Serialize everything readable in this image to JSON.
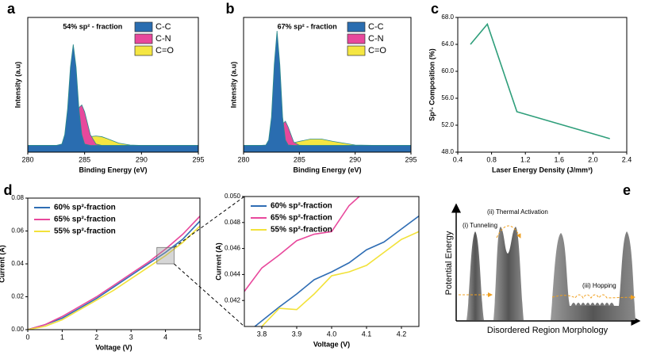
{
  "chart_data": [
    {
      "type": "area",
      "panel": "a",
      "annotation": "54% sp² - fraction",
      "x_label": "Binding Energy (eV)",
      "y_label": "Intensity (a.u)",
      "x": [
        280,
        282,
        282.5,
        283,
        283.25,
        283.5,
        283.75,
        284,
        284.25,
        284.5,
        284.75,
        285,
        285.5,
        286,
        286.5,
        287,
        288,
        289,
        290,
        292,
        295
      ],
      "series": [
        {
          "name": "C-C",
          "color": "#2a6db0",
          "values": [
            0.05,
            0.05,
            0.05,
            0.06,
            0.13,
            0.32,
            0.63,
            0.8,
            0.63,
            0.32,
            0.13,
            0.06,
            0.05,
            0.05,
            0.05,
            0.05,
            0.05,
            0.05,
            0.05,
            0.05,
            0.05
          ]
        },
        {
          "name": "C-N",
          "color": "#e8489c",
          "values": [
            0.05,
            0.05,
            0.05,
            0.05,
            0.055,
            0.067,
            0.1,
            0.16,
            0.25,
            0.33,
            0.35,
            0.3,
            0.13,
            0.06,
            0.05,
            0.05,
            0.05,
            0.05,
            0.05,
            0.05,
            0.05
          ]
        },
        {
          "name": "C=O",
          "color": "#f5e642",
          "values": [
            0.05,
            0.05,
            0.05,
            0.051,
            0.052,
            0.053,
            0.06,
            0.067,
            0.073,
            0.08,
            0.09,
            0.1,
            0.115,
            0.12,
            0.115,
            0.1,
            0.067,
            0.053,
            0.05,
            0.05,
            0.05
          ]
        }
      ],
      "xlim": [
        280,
        295
      ],
      "xticks": [
        280,
        285,
        290,
        295
      ],
      "ylim": [
        0,
        1
      ],
      "legend": "upper right"
    },
    {
      "type": "area",
      "panel": "b",
      "annotation": "67% sp² - fraction",
      "x_label": "Binding Energy (eV)",
      "y_label": "Intensity (a.u)",
      "x": [
        280,
        281.5,
        282,
        282.25,
        282.5,
        282.75,
        283,
        283.25,
        283.5,
        283.75,
        284,
        284.5,
        285,
        286,
        287,
        288,
        290,
        292,
        295
      ],
      "series": [
        {
          "name": "C-C",
          "color": "#2a6db0",
          "values": [
            0.05,
            0.05,
            0.053,
            0.09,
            0.26,
            0.65,
            0.9,
            0.65,
            0.26,
            0.09,
            0.053,
            0.05,
            0.05,
            0.05,
            0.05,
            0.05,
            0.05,
            0.05,
            0.05
          ]
        },
        {
          "name": "C-N",
          "color": "#e8489c",
          "values": [
            0.05,
            0.05,
            0.05,
            0.05,
            0.052,
            0.061,
            0.089,
            0.146,
            0.208,
            0.23,
            0.186,
            0.074,
            0.051,
            0.05,
            0.05,
            0.05,
            0.05,
            0.05,
            0.05
          ]
        },
        {
          "name": "C=O",
          "color": "#f5e642",
          "values": [
            0.05,
            0.05,
            0.05,
            0.051,
            0.051,
            0.052,
            0.053,
            0.054,
            0.056,
            0.058,
            0.062,
            0.07,
            0.08,
            0.097,
            0.097,
            0.08,
            0.053,
            0.05,
            0.05
          ]
        }
      ],
      "xlim": [
        280,
        295
      ],
      "xticks": [
        280,
        285,
        290,
        295
      ],
      "ylim": [
        0,
        1
      ],
      "legend": "upper right"
    },
    {
      "type": "line",
      "panel": "c",
      "x_label": "Laser Energy Density (J/mm³)",
      "y_label": "Sp²- Composition (%)",
      "x": [
        0.55,
        0.75,
        1.1,
        2.2
      ],
      "series": [
        {
          "color": "#2e9e7a",
          "values": [
            64,
            67,
            54,
            50
          ]
        }
      ],
      "xlim": [
        0.4,
        2.4
      ],
      "xticks": [
        0.4,
        0.8,
        1.2,
        1.6,
        {
          "value": 2.0,
          "label": "2.0"
        },
        2.4
      ],
      "ylim": [
        48,
        68
      ],
      "yticks": [
        {
          "value": 48,
          "label": "48.0"
        },
        {
          "value": 52,
          "label": "52.0"
        },
        {
          "value": 56,
          "label": "56.0"
        },
        {
          "value": 60,
          "label": "60.0"
        },
        {
          "value": 64,
          "label": "64.0"
        },
        {
          "value": 68,
          "label": "68.0"
        }
      ]
    },
    {
      "type": "line",
      "panel": "d",
      "x_label": "Voltage (V)",
      "y_label": "Current (A)",
      "x": [
        0,
        0.5,
        1,
        1.5,
        2,
        2.5,
        3,
        3.5,
        4,
        4.5,
        5
      ],
      "series": [
        {
          "name": "60% sp²-fraction",
          "color": "#2f6db4",
          "values": [
            0,
            0.003,
            0.007,
            0.013,
            0.019,
            0.026,
            0.033,
            0.04,
            0.047,
            0.055,
            0.066
          ]
        },
        {
          "name": "65% sp²-fraction",
          "color": "#e8489c",
          "values": [
            0,
            0.003,
            0.008,
            0.014,
            0.02,
            0.027,
            0.034,
            0.041,
            0.049,
            0.058,
            0.069
          ]
        },
        {
          "name": "55% sp²-fraction",
          "color": "#f2e23a",
          "values": [
            0,
            0.002,
            0.006,
            0.012,
            0.018,
            0.024,
            0.031,
            0.038,
            0.045,
            0.053,
            0.063
          ]
        }
      ],
      "xlim": [
        0,
        5
      ],
      "xticks": [
        0,
        1,
        2,
        3,
        4,
        5
      ],
      "ylim": [
        0,
        0.08
      ],
      "yticks": [
        {
          "value": 0,
          "label": "0.00"
        },
        {
          "value": 0.02,
          "label": "0.02"
        },
        {
          "value": 0.04,
          "label": "0.04"
        },
        {
          "value": 0.06,
          "label": "0.06"
        },
        {
          "value": 0.08,
          "label": "0.08"
        }
      ],
      "legend": "upper left"
    },
    {
      "type": "line",
      "x_label": "Voltage (V)",
      "y_label": "Current (A)",
      "series": [
        {
          "name": "60% sp²-fraction",
          "color": "#2f6db4",
          "x": [
            3.78,
            3.85,
            3.9,
            3.95,
            4.0,
            4.05,
            4.1,
            4.15,
            4.2,
            4.25
          ],
          "values": [
            0.04,
            0.0415,
            0.0425,
            0.0436,
            0.0442,
            0.0449,
            0.0459,
            0.0465,
            0.0475,
            0.0485
          ]
        },
        {
          "name": "65% sp²-fraction",
          "color": "#e8489c",
          "x": [
            3.75,
            3.8,
            3.85,
            3.9,
            3.95,
            4.0,
            4.05,
            4.1
          ],
          "values": [
            0.0427,
            0.0445,
            0.0455,
            0.0466,
            0.0471,
            0.0473,
            0.0493,
            0.0505
          ]
        },
        {
          "name": "55% sp²-fraction",
          "color": "#f2e23a",
          "x": [
            3.8,
            3.85,
            3.9,
            3.95,
            4.0,
            4.05,
            4.1,
            4.15,
            4.2,
            4.25
          ],
          "values": [
            0.04,
            0.0414,
            0.0413,
            0.0425,
            0.0439,
            0.0442,
            0.0447,
            0.0457,
            0.0467,
            0.0473
          ]
        }
      ],
      "xlim": [
        3.75,
        4.25
      ],
      "xticks": [
        3.8,
        3.9,
        {
          "value": 4.0,
          "label": "4.0"
        },
        4.1,
        4.2
      ],
      "ylim": [
        0.04,
        0.05
      ],
      "yticks": [
        0.042,
        0.044,
        0.046,
        0.048,
        {
          "value": 0.05,
          "label": "0.050"
        }
      ],
      "legend": "upper left"
    }
  ],
  "diagram": {
    "panel": "e",
    "y_label": "Potential Energy",
    "x_label": "Disordered Region Morphology",
    "labels": [
      "(i) Tunneling",
      "(ii) Thermal Activation",
      "(iii) Hopping"
    ]
  }
}
